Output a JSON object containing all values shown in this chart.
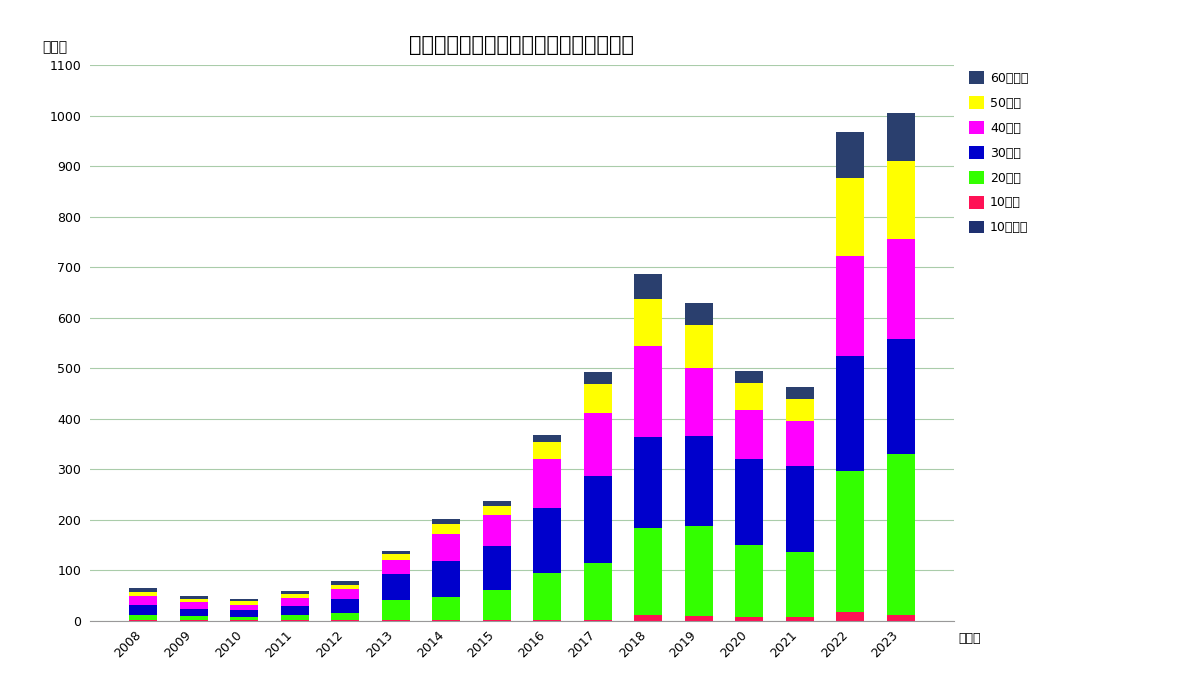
{
  "title": "大阪府の年代別梅毒報告数推移（男性）",
  "ylabel": "（件）",
  "xlabel_suffix": "（年）",
  "years": [
    2008,
    2009,
    2010,
    2011,
    2012,
    2013,
    2014,
    2015,
    2016,
    2017,
    2018,
    2019,
    2020,
    2021,
    2022,
    2023
  ],
  "categories": [
    "10歳未満",
    "10歳代",
    "20歳代",
    "30歳代",
    "40歳代",
    "50歳代",
    "60歳以上"
  ],
  "colors_map": {
    "10歳未満": "#1e3070",
    "10歳代": "#ff1155",
    "20歳代": "#33ff00",
    "30歳代": "#0000cc",
    "40歳代": "#ff00ff",
    "50歳代": "#ffff00",
    "60歳以上": "#2a3f6e"
  },
  "data": {
    "10歳未満": [
      0,
      0,
      0,
      0,
      0,
      0,
      0,
      0,
      0,
      0,
      0,
      0,
      0,
      0,
      0,
      0
    ],
    "10歳代": [
      1,
      1,
      1,
      1,
      1,
      2,
      2,
      2,
      2,
      2,
      12,
      10,
      8,
      8,
      18,
      12
    ],
    "20歳代": [
      10,
      8,
      7,
      10,
      15,
      38,
      45,
      58,
      92,
      112,
      172,
      178,
      142,
      128,
      278,
      318
    ],
    "30歳代": [
      20,
      14,
      13,
      18,
      26,
      52,
      72,
      88,
      130,
      172,
      180,
      178,
      170,
      170,
      228,
      228
    ],
    "40歳代": [
      18,
      13,
      10,
      15,
      20,
      28,
      52,
      62,
      97,
      125,
      180,
      135,
      98,
      90,
      198,
      198
    ],
    "50歳代": [
      8,
      7,
      7,
      8,
      9,
      12,
      20,
      17,
      32,
      57,
      92,
      85,
      52,
      42,
      155,
      155
    ],
    "60歳以上": [
      8,
      5,
      5,
      7,
      7,
      5,
      10,
      10,
      15,
      25,
      50,
      42,
      25,
      25,
      90,
      95
    ]
  },
  "ylim": [
    0,
    1100
  ],
  "yticks": [
    0,
    100,
    200,
    300,
    400,
    500,
    600,
    700,
    800,
    900,
    1000,
    1100
  ],
  "bg_color": "#ffffff",
  "grid_color": "#aaccaa",
  "bar_width": 0.55,
  "title_fontsize": 15,
  "tick_fontsize": 9,
  "legend_fontsize": 9
}
